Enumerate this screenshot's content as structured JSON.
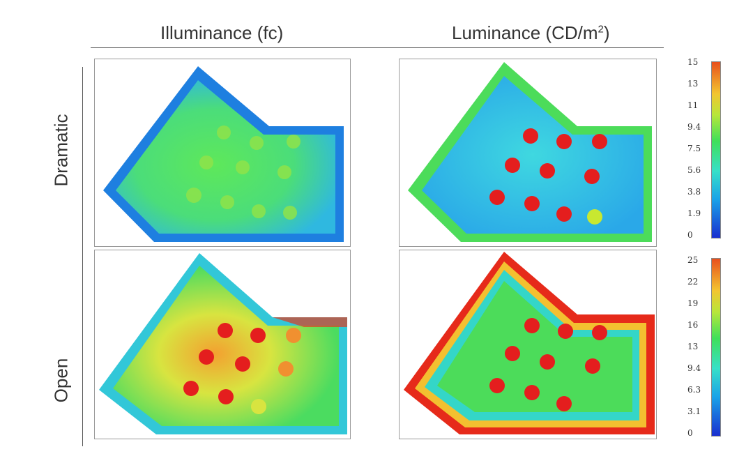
{
  "headers": {
    "illuminance": "Illuminance (fc)",
    "luminance_base": "Luminance (CD/m",
    "luminance_sup": "2",
    "luminance_close": ")"
  },
  "rows": {
    "dramatic": "Dramatic",
    "open": "Open"
  },
  "scales": {
    "top": [
      "15",
      "13",
      "11",
      "9.4",
      "7.5",
      "5.6",
      "3.8",
      "1.9",
      "0"
    ],
    "bottom": [
      "25",
      "22",
      "19",
      "16",
      "13",
      "9.4",
      "6.3",
      "3.1",
      "0"
    ]
  },
  "colors": {
    "low": "#1a2fcf",
    "mid": "#3fe05a",
    "high": "#e8501d"
  }
}
